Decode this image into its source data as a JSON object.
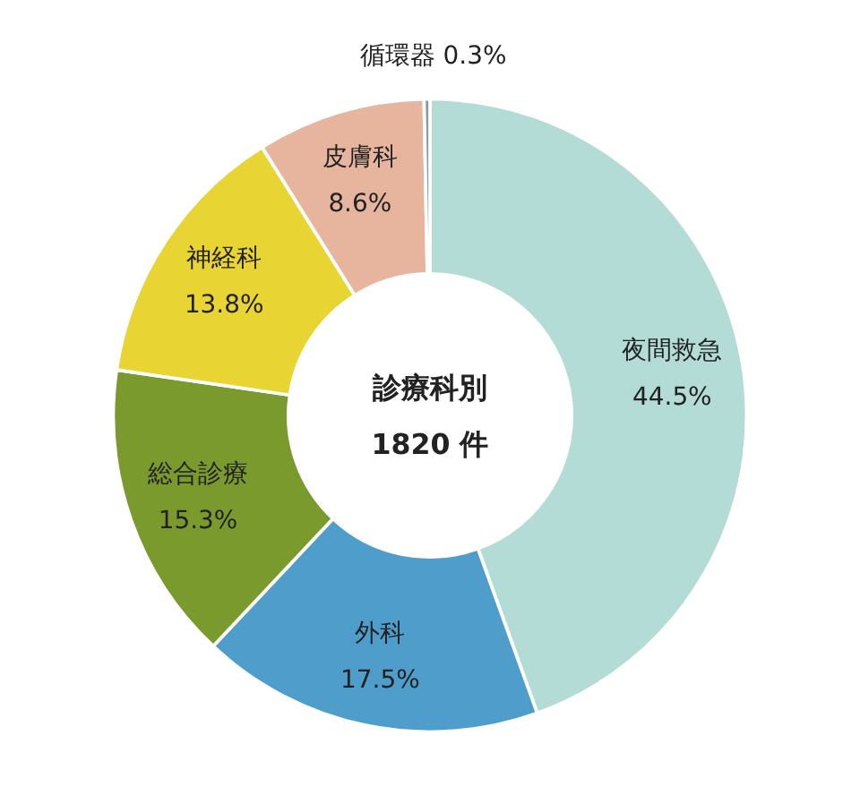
{
  "chart_data": {
    "type": "donut",
    "title": "診療科別",
    "subtitle": "1820 件",
    "categories": [
      "夜間救急",
      "外科",
      "総合診療",
      "神経科",
      "皮膚科",
      "循環器"
    ],
    "values": [
      44.5,
      17.5,
      15.3,
      13.8,
      8.6,
      0.3
    ],
    "value_labels": [
      "44.5%",
      "17.5%",
      "15.3%",
      "13.8%",
      "8.6%",
      "0.3%"
    ],
    "colors": [
      "#b4dcd6",
      "#4f9dcb",
      "#7b9a2d",
      "#e8d433",
      "#e7b59e",
      "#8c9aa0"
    ]
  }
}
